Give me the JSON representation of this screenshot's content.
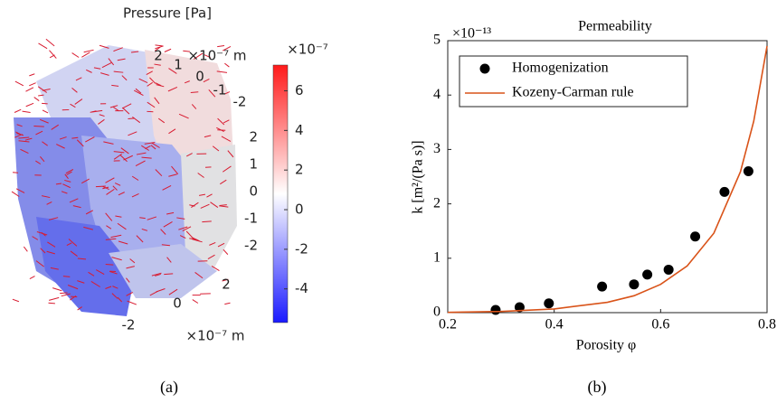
{
  "chart_data": [
    {
      "type": "volume",
      "title": "Pressure [Pa]",
      "caption": "(a)",
      "colorbar_label": "×10⁻⁷",
      "colorbar_lim": [
        -5.7,
        7.3
      ],
      "colorbar_ticks": [
        6,
        4,
        2,
        0,
        -2,
        -4
      ],
      "colorbar_colors": [
        "#1a1aff",
        "#ffffff",
        "#ff1a1a"
      ],
      "axis_unit_label": "×10⁻⁷ m",
      "top_axis_ticks": [
        2,
        1,
        0,
        -1,
        -2
      ],
      "right_axis_ticks": [
        2,
        1,
        0,
        -1,
        -2
      ],
      "bottom_axis_ticks": [
        2,
        0,
        -2
      ]
    },
    {
      "type": "scatter-line",
      "title": "Permeability",
      "caption": "(b)",
      "xlabel": "Porosity φ",
      "ylabel": "k [m²/(Pa s)]",
      "y_multiplier": "×10⁻¹³",
      "xlim": [
        0.2,
        0.8
      ],
      "ylim": [
        0,
        5
      ],
      "xticks": [
        0.2,
        0.4,
        0.6,
        0.8
      ],
      "yticks": [
        0,
        1,
        2,
        3,
        4,
        5
      ],
      "legend": "upper-left",
      "series": [
        {
          "name": "Homogenization",
          "color": "#000000",
          "marker": "circle",
          "x": [
            0.29,
            0.335,
            0.39,
            0.49,
            0.55,
            0.575,
            0.615,
            0.665,
            0.72,
            0.765
          ],
          "values": [
            0.05,
            0.1,
            0.17,
            0.48,
            0.52,
            0.7,
            0.79,
            1.4,
            2.22,
            2.6
          ]
        },
        {
          "name": "Kozeny-Carman rule",
          "color": "#d95319",
          "marker": "line",
          "x": [
            0.2,
            0.3,
            0.4,
            0.5,
            0.55,
            0.6,
            0.65,
            0.7,
            0.75,
            0.775,
            0.8
          ],
          "values": [
            0.005,
            0.021,
            0.068,
            0.19,
            0.31,
            0.52,
            0.86,
            1.46,
            2.59,
            3.52,
            4.9
          ]
        }
      ]
    }
  ]
}
